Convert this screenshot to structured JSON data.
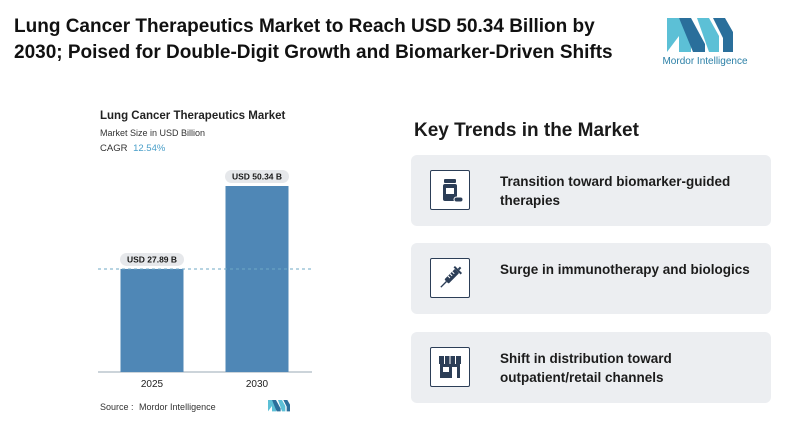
{
  "headline": "Lung Cancer Therapeutics Market to Reach USD 50.34 Billion by 2030; Poised for Double-Digit Growth and Biomarker-Driven Shifts",
  "brand": {
    "name": "Mordor Intelligence",
    "primary_color": "#5cc0d6",
    "secondary_color": "#2a6f9b"
  },
  "chart_data": {
    "type": "bar",
    "title": "Lung Cancer Therapeutics Market",
    "subtitle": "Market Size in USD Billion",
    "cagr_label": "CAGR",
    "cagr_value": "12.54%",
    "categories": [
      "2025",
      "2030"
    ],
    "values": [
      27.89,
      50.34
    ],
    "data_labels": [
      "USD 27.89 B",
      "USD 50.34 B"
    ],
    "reference_line": 27.89,
    "bar_colors": [
      "#4f87b6",
      "#4f87b6"
    ],
    "ylim": [
      0,
      50.34
    ],
    "grid": false
  },
  "source": {
    "label": "Source :",
    "name": "Mordor Intelligence"
  },
  "trends": {
    "heading": "Key Trends in the Market",
    "items": [
      {
        "icon": "medicine-bottle-icon",
        "text": "Transition toward biomarker-guided therapies"
      },
      {
        "icon": "syringe-icon",
        "text": "Surge in immunotherapy and biologics"
      },
      {
        "icon": "storefront-icon",
        "text": "Shift in distribution toward outpatient/retail channels"
      }
    ]
  }
}
